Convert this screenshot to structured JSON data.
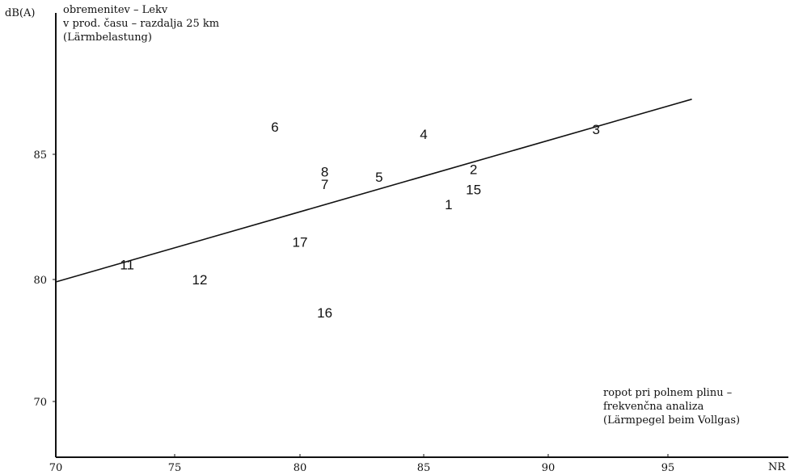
{
  "chart_data": {
    "type": "scatter",
    "ylabel": "dB(A)",
    "xlabel": "NR",
    "annotation_top": [
      "obremenitev – Lekv",
      "v prod. času – razdalja 25 km",
      "(Lärmbelastung)"
    ],
    "annotation_bottom": [
      "ropot pri polnem plinu –",
      "frekvenčna analiza",
      "(Lärmpegel beim Vollgas)"
    ],
    "x_ticks": [
      "70",
      "75",
      "80",
      "85",
      "90",
      "95"
    ],
    "y_ticks": [
      "70",
      "80",
      "85"
    ],
    "points": [
      {
        "label": "1",
        "x": 86.0,
        "y": 83.0
      },
      {
        "label": "2",
        "x": 87.0,
        "y": 84.4
      },
      {
        "label": "3",
        "x": 92.0,
        "y": 86.0
      },
      {
        "label": "4",
        "x": 85.0,
        "y": 85.8
      },
      {
        "label": "5",
        "x": 83.2,
        "y": 84.1
      },
      {
        "label": "6",
        "x": 79.0,
        "y": 86.1
      },
      {
        "label": "7",
        "x": 81.0,
        "y": 83.8
      },
      {
        "label": "8",
        "x": 81.0,
        "y": 84.3
      },
      {
        "label": "11",
        "x": 73.0,
        "y": 80.6
      },
      {
        "label": "12",
        "x": 76.0,
        "y": 80.0
      },
      {
        "label": "15",
        "x": 87.0,
        "y": 83.6
      },
      {
        "label": "16",
        "x": 81.0,
        "y": 77.3
      },
      {
        "label": "17",
        "x": 80.0,
        "y": 81.5
      }
    ],
    "regression_line": {
      "x": [
        70,
        96
      ],
      "y": [
        79.8,
        87.2
      ]
    }
  }
}
